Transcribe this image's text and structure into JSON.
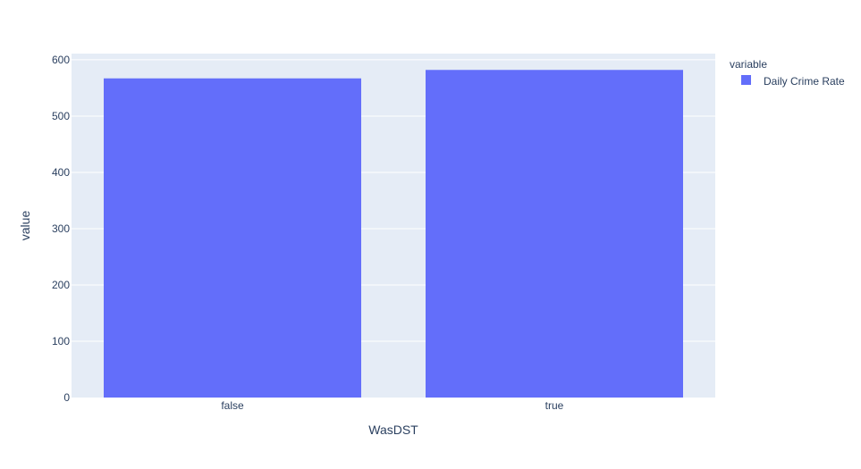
{
  "chart_data": {
    "type": "bar",
    "categories": [
      "false",
      "true"
    ],
    "series": [
      {
        "name": "Daily Crime Rate",
        "values": [
          567,
          582
        ],
        "color": "#636efa"
      }
    ],
    "xlabel": "WasDST",
    "ylabel": "value",
    "ylim": [
      0,
      611
    ],
    "yticks": [
      0,
      100,
      200,
      300,
      400,
      500,
      600
    ],
    "grid": true,
    "legend": {
      "title": "variable",
      "placement": "top-right"
    },
    "plot_bgcolor": "#e5ecf6",
    "grid_color": "#ffffff",
    "text_color": "#2a3f5f"
  }
}
